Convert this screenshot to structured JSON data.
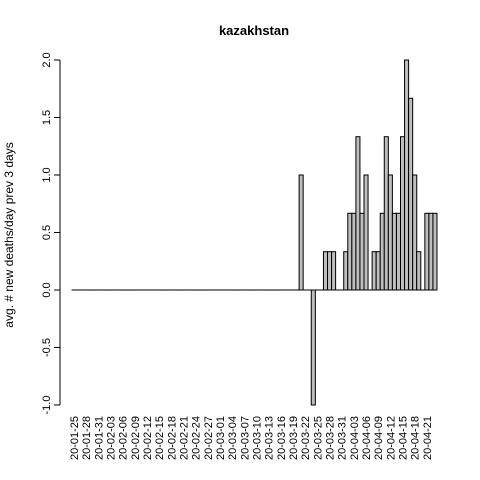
{
  "chart_data": {
    "type": "bar",
    "title": "kazakhstan",
    "xlabel": "",
    "ylabel": "avg. # new deaths/day prev  3  days",
    "ylim": [
      -1.0,
      2.0
    ],
    "yticks": [
      "-1.0",
      "-0.5",
      "0.0",
      "0.5",
      "1.0",
      "1.5",
      "2.0"
    ],
    "ytick_values": [
      -1.0,
      -0.5,
      0.0,
      0.5,
      1.0,
      1.5,
      2.0
    ],
    "grid": false,
    "legend": "none",
    "bar_color": "#bebebe",
    "categories": [
      "20-01-25",
      "20-01-26",
      "20-01-27",
      "20-01-28",
      "20-01-29",
      "20-01-30",
      "20-01-31",
      "20-02-01",
      "20-02-02",
      "20-02-03",
      "20-02-04",
      "20-02-05",
      "20-02-06",
      "20-02-07",
      "20-02-08",
      "20-02-09",
      "20-02-10",
      "20-02-11",
      "20-02-12",
      "20-02-13",
      "20-02-14",
      "20-02-15",
      "20-02-16",
      "20-02-17",
      "20-02-18",
      "20-02-19",
      "20-02-20",
      "20-02-21",
      "20-02-22",
      "20-02-23",
      "20-02-24",
      "20-02-25",
      "20-02-26",
      "20-02-27",
      "20-02-28",
      "20-02-29",
      "20-03-01",
      "20-03-02",
      "20-03-03",
      "20-03-04",
      "20-03-05",
      "20-03-06",
      "20-03-07",
      "20-03-08",
      "20-03-09",
      "20-03-10",
      "20-03-11",
      "20-03-12",
      "20-03-13",
      "20-03-14",
      "20-03-15",
      "20-03-16",
      "20-03-17",
      "20-03-18",
      "20-03-19",
      "20-03-20",
      "20-03-21",
      "20-03-22",
      "20-03-23",
      "20-03-24",
      "20-03-25",
      "20-03-26",
      "20-03-27",
      "20-03-28",
      "20-03-29",
      "20-03-30",
      "20-03-31",
      "20-04-01",
      "20-04-02",
      "20-04-03",
      "20-04-04",
      "20-04-05",
      "20-04-06",
      "20-04-07",
      "20-04-08",
      "20-04-09",
      "20-04-10",
      "20-04-11",
      "20-04-12",
      "20-04-13",
      "20-04-14",
      "20-04-15",
      "20-04-16",
      "20-04-17",
      "20-04-18",
      "20-04-19",
      "20-04-20",
      "20-04-21",
      "20-04-22",
      "20-04-23"
    ],
    "xtick_labels": [
      "20-01-25",
      "20-01-28",
      "20-01-31",
      "20-02-03",
      "20-02-06",
      "20-02-09",
      "20-02-12",
      "20-02-15",
      "20-02-18",
      "20-02-21",
      "20-02-24",
      "20-02-27",
      "20-03-01",
      "20-03-04",
      "20-03-07",
      "20-03-10",
      "20-03-13",
      "20-03-16",
      "20-03-19",
      "20-03-22",
      "20-03-25",
      "20-03-28",
      "20-03-31",
      "20-04-03",
      "20-04-06",
      "20-04-09",
      "20-04-12",
      "20-04-15",
      "20-04-18",
      "20-04-21"
    ],
    "values": [
      0,
      0,
      0,
      0,
      0,
      0,
      0,
      0,
      0,
      0,
      0,
      0,
      0,
      0,
      0,
      0,
      0,
      0,
      0,
      0,
      0,
      0,
      0,
      0,
      0,
      0,
      0,
      0,
      0,
      0,
      0,
      0,
      0,
      0,
      0,
      0,
      0,
      0,
      0,
      0,
      0,
      0,
      0,
      0,
      0,
      0,
      0,
      0,
      0,
      0,
      0,
      0,
      0,
      0,
      0,
      0,
      1.0,
      0,
      0,
      -1.0,
      0,
      0,
      0.333,
      0.333,
      0.333,
      0,
      0,
      0.333,
      0.667,
      0.667,
      1.333,
      0.667,
      1.0,
      0,
      0.333,
      0.333,
      0.667,
      1.333,
      1.0,
      0.667,
      0.667,
      1.333,
      2.0,
      1.667,
      1.0,
      0.333,
      0,
      0.667,
      0.667,
      0.667
    ]
  }
}
